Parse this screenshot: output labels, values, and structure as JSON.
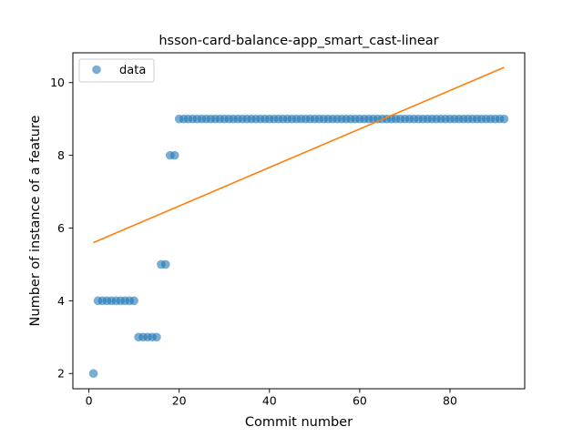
{
  "chart_data": {
    "type": "scatter",
    "title": "hsson-card-balance-app_smart_cast-linear",
    "xlabel": "Commit number",
    "ylabel": "Number of instance of a feature",
    "xlim": [
      -3.55,
      96.55
    ],
    "ylim": [
      1.58,
      10.82
    ],
    "xticks": [
      0,
      20,
      40,
      60,
      80
    ],
    "yticks": [
      2,
      4,
      6,
      8,
      10
    ],
    "grid": false,
    "legend": {
      "position": "upper-left",
      "entries": [
        "data"
      ]
    },
    "colors": {
      "data": "#1f77b4",
      "fit": "#ff7f0e"
    },
    "series": [
      {
        "name": "data",
        "kind": "scatter",
        "x": [
          1,
          2,
          3,
          4,
          5,
          6,
          7,
          8,
          9,
          10,
          11,
          12,
          13,
          14,
          15,
          16,
          17,
          18,
          19,
          20,
          21,
          22,
          23,
          24,
          25,
          26,
          27,
          28,
          29,
          30,
          31,
          32,
          33,
          34,
          35,
          36,
          37,
          38,
          39,
          40,
          41,
          42,
          43,
          44,
          45,
          46,
          47,
          48,
          49,
          50,
          51,
          52,
          53,
          54,
          55,
          56,
          57,
          58,
          59,
          60,
          61,
          62,
          63,
          64,
          65,
          66,
          67,
          68,
          69,
          70,
          71,
          72,
          73,
          74,
          75,
          76,
          77,
          78,
          79,
          80,
          81,
          82,
          83,
          84,
          85,
          86,
          87,
          88,
          89,
          90,
          91,
          92
        ],
        "y": [
          2,
          4,
          4,
          4,
          4,
          4,
          4,
          4,
          4,
          4,
          3,
          3,
          3,
          3,
          3,
          5,
          5,
          8,
          8,
          9,
          9,
          9,
          9,
          9,
          9,
          9,
          9,
          9,
          9,
          9,
          9,
          9,
          9,
          9,
          9,
          9,
          9,
          9,
          9,
          9,
          9,
          9,
          9,
          9,
          9,
          9,
          9,
          9,
          9,
          9,
          9,
          9,
          9,
          9,
          9,
          9,
          9,
          9,
          9,
          9,
          9,
          9,
          9,
          9,
          9,
          9,
          9,
          9,
          9,
          9,
          9,
          9,
          9,
          9,
          9,
          9,
          9,
          9,
          9,
          9,
          9,
          9,
          9,
          9,
          9,
          9,
          9,
          9,
          9,
          9,
          9,
          9
        ]
      },
      {
        "kind": "line",
        "x": [
          1,
          92
        ],
        "y": [
          5.6,
          10.42
        ]
      }
    ]
  }
}
